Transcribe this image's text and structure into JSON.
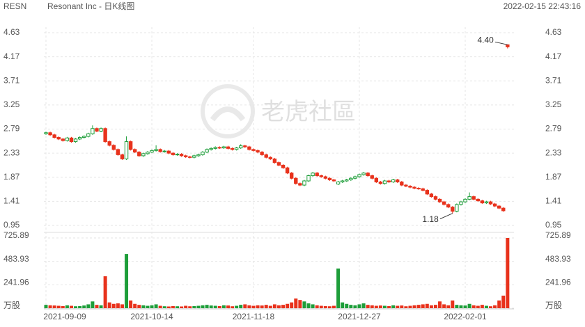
{
  "chart_data": {
    "type": "candlestick",
    "ticker": "RESN",
    "title": "Resonant Inc - 日K线图",
    "timestamp": "2022-02-15 22:43:16",
    "watermark": "老虎社區",
    "up_color": "#1e9e3a",
    "down_color": "#e8321c",
    "annotations": [
      "4.40",
      "1.18"
    ],
    "categories": [
      "2021-09-09",
      null,
      null,
      null,
      null,
      null,
      null,
      null,
      null,
      null,
      null,
      null,
      null,
      null,
      null,
      null,
      null,
      null,
      null,
      null,
      null,
      null,
      null,
      null,
      null,
      "2021-10-14",
      null,
      null,
      null,
      null,
      null,
      null,
      null,
      null,
      null,
      null,
      null,
      null,
      null,
      null,
      null,
      null,
      null,
      null,
      null,
      null,
      null,
      null,
      null,
      "2021-11-18",
      null,
      null,
      null,
      null,
      null,
      null,
      null,
      null,
      null,
      null,
      null,
      null,
      null,
      null,
      null,
      null,
      null,
      null,
      null,
      null,
      null,
      null,
      null,
      null,
      "2021-12-27",
      null,
      null,
      null,
      null,
      null,
      null,
      null,
      null,
      null,
      null,
      null,
      null,
      null,
      null,
      null,
      null,
      null,
      null,
      null,
      null,
      null,
      null,
      null,
      null,
      "2022-02-01",
      null,
      null,
      null,
      null,
      null,
      null,
      null,
      null,
      null,
      null
    ],
    "ohlc": [
      [
        2.7,
        2.74,
        2.68,
        2.72
      ],
      [
        2.72,
        2.74,
        2.66,
        2.68
      ],
      [
        2.68,
        2.7,
        2.61,
        2.63
      ],
      [
        2.63,
        2.65,
        2.58,
        2.6
      ],
      [
        2.6,
        2.62,
        2.55,
        2.57
      ],
      [
        2.57,
        2.64,
        2.55,
        2.62
      ],
      [
        2.62,
        2.64,
        2.53,
        2.55
      ],
      [
        2.55,
        2.62,
        2.53,
        2.6
      ],
      [
        2.6,
        2.65,
        2.58,
        2.63
      ],
      [
        2.63,
        2.67,
        2.61,
        2.65
      ],
      [
        2.65,
        2.72,
        2.63,
        2.7
      ],
      [
        2.7,
        2.86,
        2.68,
        2.8
      ],
      [
        2.8,
        2.82,
        2.73,
        2.75
      ],
      [
        2.75,
        2.82,
        2.73,
        2.8
      ],
      [
        2.8,
        2.82,
        2.53,
        2.55
      ],
      [
        2.55,
        2.57,
        2.46,
        2.48
      ],
      [
        2.48,
        2.5,
        2.38,
        2.4
      ],
      [
        2.4,
        2.42,
        2.28,
        2.3
      ],
      [
        2.3,
        2.32,
        2.2,
        2.22
      ],
      [
        2.22,
        2.65,
        2.2,
        2.55
      ],
      [
        2.55,
        2.57,
        2.38,
        2.4
      ],
      [
        2.4,
        2.42,
        2.33,
        2.35
      ],
      [
        2.35,
        2.37,
        2.26,
        2.28
      ],
      [
        2.28,
        2.34,
        2.26,
        2.32
      ],
      [
        2.32,
        2.37,
        2.3,
        2.35
      ],
      [
        2.35,
        2.4,
        2.33,
        2.38
      ],
      [
        2.38,
        2.48,
        2.36,
        2.4
      ],
      [
        2.4,
        2.42,
        2.34,
        2.36
      ],
      [
        2.36,
        2.39,
        2.34,
        2.37
      ],
      [
        2.37,
        2.39,
        2.31,
        2.33
      ],
      [
        2.33,
        2.35,
        2.28,
        2.3
      ],
      [
        2.3,
        2.33,
        2.28,
        2.31
      ],
      [
        2.31,
        2.33,
        2.26,
        2.28
      ],
      [
        2.28,
        2.3,
        2.24,
        2.26
      ],
      [
        2.26,
        2.28,
        2.23,
        2.25
      ],
      [
        2.25,
        2.3,
        2.23,
        2.28
      ],
      [
        2.28,
        2.32,
        2.26,
        2.3
      ],
      [
        2.3,
        2.37,
        2.28,
        2.35
      ],
      [
        2.35,
        2.42,
        2.33,
        2.4
      ],
      [
        2.4,
        2.44,
        2.38,
        2.42
      ],
      [
        2.42,
        2.46,
        2.4,
        2.44
      ],
      [
        2.44,
        2.46,
        2.41,
        2.43
      ],
      [
        2.43,
        2.47,
        2.41,
        2.45
      ],
      [
        2.45,
        2.47,
        2.4,
        2.42
      ],
      [
        2.42,
        2.44,
        2.38,
        2.4
      ],
      [
        2.4,
        2.45,
        2.38,
        2.43
      ],
      [
        2.43,
        2.5,
        2.41,
        2.47
      ],
      [
        2.47,
        2.49,
        2.43,
        2.45
      ],
      [
        2.45,
        2.47,
        2.38,
        2.4
      ],
      [
        2.4,
        2.42,
        2.36,
        2.38
      ],
      [
        2.38,
        2.4,
        2.33,
        2.35
      ],
      [
        2.35,
        2.37,
        2.28,
        2.3
      ],
      [
        2.3,
        2.32,
        2.23,
        2.25
      ],
      [
        2.25,
        2.27,
        2.2,
        2.22
      ],
      [
        2.22,
        2.24,
        2.13,
        2.15
      ],
      [
        2.15,
        2.17,
        2.08,
        2.1
      ],
      [
        2.1,
        2.12,
        2.03,
        2.05
      ],
      [
        2.05,
        2.07,
        1.93,
        1.95
      ],
      [
        1.95,
        1.97,
        1.83,
        1.85
      ],
      [
        1.85,
        1.87,
        1.73,
        1.75
      ],
      [
        1.75,
        1.77,
        1.7,
        1.72
      ],
      [
        1.72,
        1.82,
        1.7,
        1.8
      ],
      [
        1.8,
        1.92,
        1.78,
        1.9
      ],
      [
        1.9,
        1.97,
        1.88,
        1.95
      ],
      [
        1.95,
        1.97,
        1.88,
        1.9
      ],
      [
        1.9,
        1.92,
        1.86,
        1.88
      ],
      [
        1.88,
        1.9,
        1.83,
        1.85
      ],
      [
        1.85,
        1.87,
        1.8,
        1.82
      ],
      [
        1.82,
        1.84,
        1.78,
        1.8
      ],
      [
        1.74,
        1.8,
        1.72,
        1.78
      ],
      [
        1.78,
        1.82,
        1.76,
        1.8
      ],
      [
        1.8,
        1.84,
        1.78,
        1.82
      ],
      [
        1.82,
        1.87,
        1.8,
        1.85
      ],
      [
        1.85,
        1.9,
        1.83,
        1.88
      ],
      [
        1.88,
        1.94,
        1.86,
        1.92
      ],
      [
        1.92,
        1.97,
        1.9,
        1.95
      ],
      [
        1.95,
        1.97,
        1.88,
        1.9
      ],
      [
        1.9,
        1.92,
        1.83,
        1.85
      ],
      [
        1.85,
        1.87,
        1.76,
        1.78
      ],
      [
        1.78,
        1.8,
        1.73,
        1.75
      ],
      [
        1.75,
        1.82,
        1.73,
        1.8
      ],
      [
        1.8,
        1.82,
        1.76,
        1.78
      ],
      [
        1.78,
        1.84,
        1.76,
        1.82
      ],
      [
        1.82,
        1.84,
        1.76,
        1.78
      ],
      [
        1.78,
        1.8,
        1.7,
        1.72
      ],
      [
        1.72,
        1.74,
        1.68,
        1.7
      ],
      [
        1.7,
        1.72,
        1.66,
        1.68
      ],
      [
        1.68,
        1.7,
        1.64,
        1.66
      ],
      [
        1.66,
        1.68,
        1.63,
        1.65
      ],
      [
        1.65,
        1.67,
        1.6,
        1.62
      ],
      [
        1.62,
        1.64,
        1.53,
        1.55
      ],
      [
        1.55,
        1.57,
        1.48,
        1.5
      ],
      [
        1.5,
        1.52,
        1.43,
        1.45
      ],
      [
        1.45,
        1.47,
        1.38,
        1.4
      ],
      [
        1.4,
        1.42,
        1.33,
        1.35
      ],
      [
        1.35,
        1.37,
        1.28,
        1.3
      ],
      [
        1.3,
        1.32,
        1.18,
        1.22
      ],
      [
        1.22,
        1.37,
        1.2,
        1.35
      ],
      [
        1.35,
        1.42,
        1.33,
        1.4
      ],
      [
        1.4,
        1.47,
        1.38,
        1.45
      ],
      [
        1.45,
        1.58,
        1.43,
        1.5
      ],
      [
        1.5,
        1.52,
        1.43,
        1.45
      ],
      [
        1.45,
        1.47,
        1.4,
        1.42
      ],
      [
        1.42,
        1.44,
        1.36,
        1.38
      ],
      [
        1.38,
        1.42,
        1.36,
        1.4
      ],
      [
        1.4,
        1.42,
        1.34,
        1.36
      ],
      [
        1.36,
        1.38,
        1.3,
        1.32
      ],
      [
        1.32,
        1.34,
        1.26,
        1.28
      ],
      [
        1.28,
        1.3,
        1.21,
        1.23
      ],
      [
        4.4,
        4.4,
        4.33,
        4.36
      ]
    ],
    "volume": [
      35,
      30,
      28,
      25,
      22,
      30,
      25,
      20,
      22,
      28,
      40,
      70,
      35,
      30,
      330,
      60,
      45,
      50,
      40,
      560,
      80,
      45,
      35,
      30,
      25,
      30,
      40,
      25,
      20,
      18,
      22,
      20,
      18,
      25,
      20,
      22,
      25,
      30,
      35,
      28,
      25,
      22,
      30,
      28,
      20,
      25,
      35,
      40,
      30,
      25,
      30,
      28,
      35,
      25,
      40,
      30,
      35,
      45,
      60,
      100,
      85,
      70,
      50,
      40,
      30,
      25,
      22,
      20,
      25,
      410,
      60,
      45,
      35,
      30,
      40,
      50,
      35,
      30,
      25,
      28,
      25,
      22,
      30,
      25,
      28,
      20,
      25,
      30,
      35,
      40,
      45,
      30,
      35,
      70,
      40,
      30,
      80,
      35,
      30,
      28,
      45,
      30,
      25,
      35,
      25,
      20,
      30,
      80,
      130,
      725.89
    ],
    "ylim": [
      0.95,
      4.63
    ],
    "yticks": [
      4.63,
      4.17,
      3.71,
      3.25,
      2.79,
      2.33,
      1.87,
      1.41,
      0.95
    ],
    "volume_ylim": [
      0,
      725.89
    ],
    "volume_yticks": [
      725.89,
      483.93,
      241.96,
      {
        "value": 0,
        "label": "万股"
      }
    ],
    "grid": true
  }
}
